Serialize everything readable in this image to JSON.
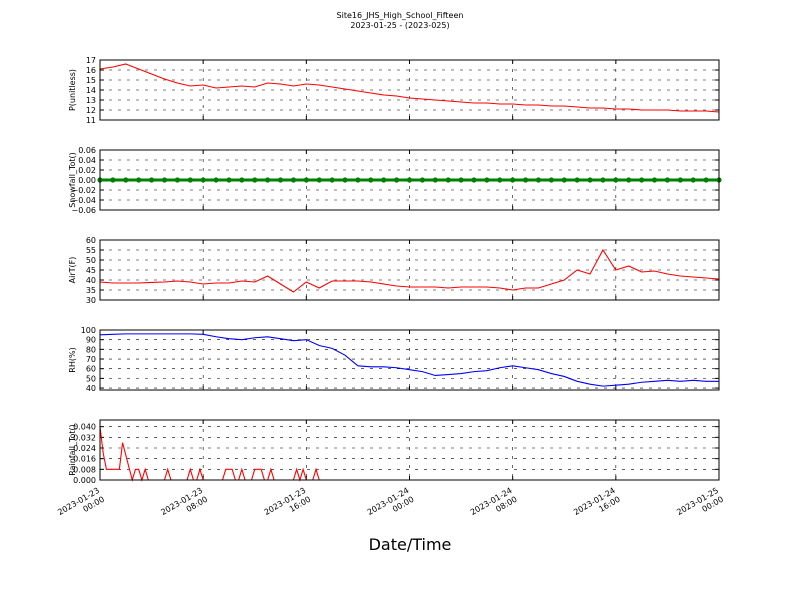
{
  "chart_data": {
    "title": "Site16_JHS_High_School_Fifteen",
    "subtitle": "2023-01-25 - (2023-025)",
    "xlabel": "Date/Time",
    "xlim": [
      "2023-01-23 00:00",
      "2023-01-25 00:00"
    ],
    "xticks": [
      "2023-01-23 00:00",
      "2023-01-23 08:00",
      "2023-01-23 16:00",
      "2023-01-24 00:00",
      "2023-01-24 08:00",
      "2023-01-24 16:00",
      "2023-01-25 00:00"
    ],
    "x": [
      "2023-01-23 00:00",
      "2023-01-23 01:00",
      "2023-01-23 02:00",
      "2023-01-23 03:00",
      "2023-01-23 04:00",
      "2023-01-23 05:00",
      "2023-01-23 06:00",
      "2023-01-23 07:00",
      "2023-01-23 08:00",
      "2023-01-23 09:00",
      "2023-01-23 10:00",
      "2023-01-23 11:00",
      "2023-01-23 12:00",
      "2023-01-23 13:00",
      "2023-01-23 14:00",
      "2023-01-23 15:00",
      "2023-01-23 16:00",
      "2023-01-23 17:00",
      "2023-01-23 18:00",
      "2023-01-23 19:00",
      "2023-01-23 20:00",
      "2023-01-23 21:00",
      "2023-01-23 22:00",
      "2023-01-23 23:00",
      "2023-01-24 00:00",
      "2023-01-24 01:00",
      "2023-01-24 02:00",
      "2023-01-24 03:00",
      "2023-01-24 04:00",
      "2023-01-24 05:00",
      "2023-01-24 06:00",
      "2023-01-24 07:00",
      "2023-01-24 08:00",
      "2023-01-24 09:00",
      "2023-01-24 10:00",
      "2023-01-24 11:00",
      "2023-01-24 12:00",
      "2023-01-24 13:00",
      "2023-01-24 14:00",
      "2023-01-24 15:00",
      "2023-01-24 16:00",
      "2023-01-24 17:00",
      "2023-01-24 18:00",
      "2023-01-24 19:00",
      "2023-01-24 20:00",
      "2023-01-24 21:00",
      "2023-01-24 22:00",
      "2023-01-24 23:00",
      "2023-01-25 00:00"
    ],
    "panels": [
      {
        "type": "line",
        "ylabel": "P(unitless)",
        "ylim": [
          11,
          17
        ],
        "yticks": [
          11,
          12,
          13,
          14,
          15,
          16,
          17
        ],
        "grid": true,
        "series": [
          {
            "color": "#ff0000",
            "values": [
              16.1,
              16.3,
              16.6,
              16.1,
              15.6,
              15.1,
              14.7,
              14.4,
              14.5,
              14.2,
              14.3,
              14.4,
              14.3,
              14.7,
              14.6,
              14.4,
              14.6,
              14.5,
              14.3,
              14.1,
              13.9,
              13.7,
              13.5,
              13.4,
              13.2,
              13.1,
              13.0,
              12.9,
              12.8,
              12.7,
              12.7,
              12.6,
              12.6,
              12.5,
              12.5,
              12.4,
              12.4,
              12.3,
              12.2,
              12.2,
              12.1,
              12.1,
              12.0,
              12.0,
              12.0,
              11.9,
              11.9,
              11.9,
              11.8
            ]
          }
        ]
      },
      {
        "type": "line",
        "markers": true,
        "ylabel": "Snowfall_Tot()",
        "ylim": [
          -0.06,
          0.06
        ],
        "yticks": [
          {
            "value": -0.06,
            "label": "−0.06"
          },
          {
            "value": -0.04,
            "label": "−0.04"
          },
          {
            "value": -0.02,
            "label": "−0.02"
          },
          {
            "value": 0,
            "label": "0.00"
          },
          0.02,
          0.04,
          0.06
        ],
        "grid": true,
        "series": [
          {
            "color": "#008000",
            "values": [
              0,
              0,
              0,
              0,
              0,
              0,
              0,
              0,
              0,
              0,
              0,
              0,
              0,
              0,
              0,
              0,
              0,
              0,
              0,
              0,
              0,
              0,
              0,
              0,
              0,
              0,
              0,
              0,
              0,
              0,
              0,
              0,
              0,
              0,
              0,
              0,
              0,
              0,
              0,
              0,
              0,
              0,
              0,
              0,
              0,
              0,
              0,
              0,
              0
            ]
          }
        ]
      },
      {
        "type": "line",
        "ylabel": "AirT(F)",
        "ylim": [
          30,
          60
        ],
        "yticks": [
          30,
          35,
          40,
          45,
          50,
          55,
          60
        ],
        "grid": true,
        "series": [
          {
            "color": "#ff0000",
            "values": [
              39,
              38.5,
              38.5,
              38.5,
              38.8,
              39,
              39.5,
              39,
              38,
              38.5,
              38.5,
              39.5,
              39,
              42,
              38,
              34,
              39,
              36,
              39.5,
              39.5,
              39.5,
              39,
              38,
              37,
              36.5,
              36.5,
              36.5,
              36,
              36.5,
              36.5,
              36.5,
              36,
              35,
              36,
              36,
              38,
              40,
              45,
              43,
              55,
              45,
              47,
              44,
              44.5,
              43,
              42,
              41.5,
              41,
              40.5
            ]
          }
        ]
      },
      {
        "type": "line",
        "ylabel": "RH(%)",
        "ylim": [
          38,
          100
        ],
        "yticks": [
          40,
          50,
          60,
          70,
          80,
          90,
          100
        ],
        "grid": true,
        "series": [
          {
            "color": "#0000ff",
            "values": [
              95,
              95.5,
              96,
              96,
              96,
              96,
              96,
              96,
              95.5,
              93,
              91,
              90,
              92,
              93,
              91,
              89,
              90,
              84,
              81,
              74,
              63,
              62,
              62,
              61,
              59,
              57,
              53,
              54,
              55,
              57,
              58,
              61,
              63,
              61,
              59,
              55,
              52,
              47,
              44,
              42,
              43,
              44,
              46,
              47,
              48,
              47,
              48,
              47,
              47
            ]
          }
        ]
      },
      {
        "type": "line",
        "ylabel": "Rainfall_Tot()",
        "ylim": [
          0,
          0.045
        ],
        "yticks": [
          {
            "value": 0,
            "label": "0.000"
          },
          0.008,
          0.016,
          0.024,
          0.032,
          {
            "value": 0.04,
            "label": "0.040"
          }
        ],
        "grid": true,
        "x": [
          "2023-01-23 00:00",
          "2023-01-23 00:15",
          "2023-01-23 00:30",
          "2023-01-23 01:30",
          "2023-01-23 01:45",
          "2023-01-23 02:30",
          "2023-01-23 02:45",
          "2023-01-23 03:00",
          "2023-01-23 03:15",
          "2023-01-23 03:30",
          "2023-01-23 03:45",
          "2023-01-23 05:00",
          "2023-01-23 05:15",
          "2023-01-23 05:30",
          "2023-01-23 06:45",
          "2023-01-23 07:00",
          "2023-01-23 07:15",
          "2023-01-23 07:30",
          "2023-01-23 07:45",
          "2023-01-23 08:00",
          "2023-01-23 09:30",
          "2023-01-23 09:45",
          "2023-01-23 10:15",
          "2023-01-23 10:30",
          "2023-01-23 10:45",
          "2023-01-23 11:00",
          "2023-01-23 11:15",
          "2023-01-23 11:45",
          "2023-01-23 12:00",
          "2023-01-23 12:30",
          "2023-01-23 12:45",
          "2023-01-23 13:00",
          "2023-01-23 13:15",
          "2023-01-23 13:30",
          "2023-01-23 15:00",
          "2023-01-23 15:15",
          "2023-01-23 15:30",
          "2023-01-23 15:45",
          "2023-01-23 16:00",
          "2023-01-23 16:30",
          "2023-01-23 16:45",
          "2023-01-23 17:00",
          "2023-01-25 00:00"
        ],
        "series": [
          {
            "color": "#ff0000",
            "values": [
              0.04,
              0.02,
              0.008,
              0.008,
              0.028,
              0,
              0.008,
              0.008,
              0,
              0.008,
              0,
              0,
              0.008,
              0,
              0,
              0.008,
              0,
              0,
              0.008,
              0,
              0,
              0.008,
              0.008,
              0,
              0,
              0.008,
              0,
              0,
              0.008,
              0.008,
              0,
              0,
              0.008,
              0,
              0,
              0.008,
              0,
              0.008,
              0,
              0,
              0.008,
              0,
              0
            ]
          }
        ]
      }
    ]
  }
}
